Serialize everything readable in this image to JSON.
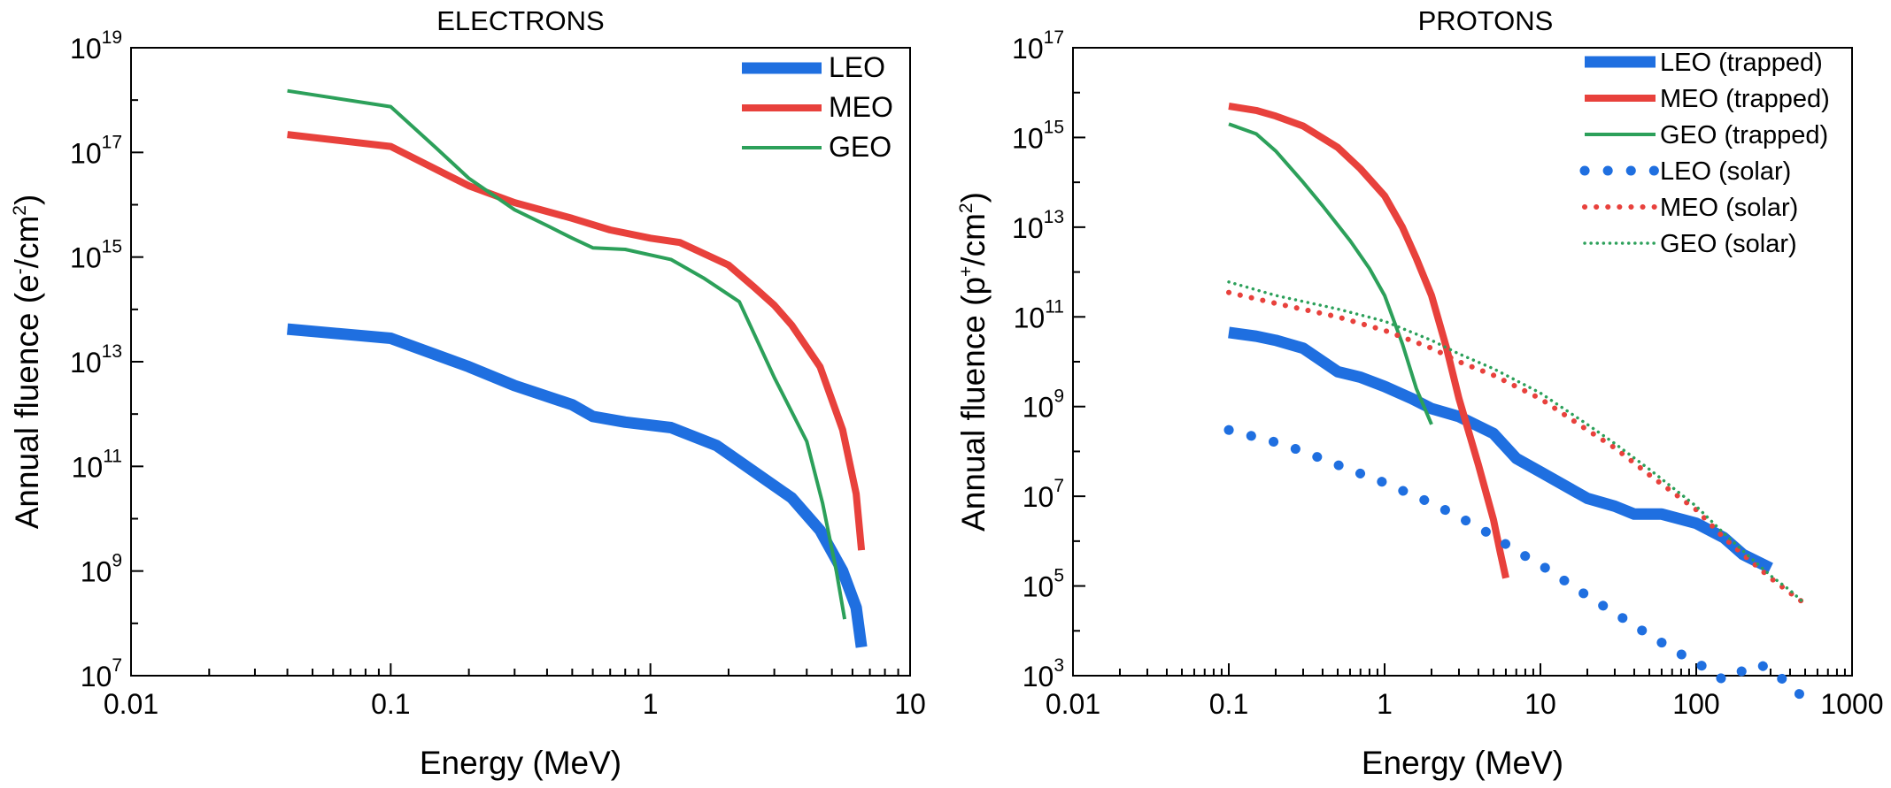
{
  "chart_data": [
    {
      "type": "line",
      "title": "ELECTRONS",
      "xlabel": "Energy (MeV)",
      "ylabel_main": "Annual fluence (e",
      "ylabel_sup1": "-",
      "ylabel_mid": "/cm",
      "ylabel_sup2": "2",
      "ylabel_end": ")",
      "x_scale": "log",
      "y_scale": "log",
      "xlim": [
        0.01,
        10
      ],
      "ylim": [
        10000000.0,
        1e+19
      ],
      "x_ticks": [
        {
          "value": 0.01,
          "label": "0.01"
        },
        {
          "value": 0.1,
          "label": "0.1"
        },
        {
          "value": 1,
          "label": "1"
        },
        {
          "value": 10,
          "label": "10"
        }
      ],
      "y_ticks": [
        {
          "exp": 7,
          "base": "10",
          "sup": "7"
        },
        {
          "exp": 9,
          "base": "10",
          "sup": "9"
        },
        {
          "exp": 11,
          "base": "10",
          "sup": "11"
        },
        {
          "exp": 13,
          "base": "10",
          "sup": "13"
        },
        {
          "exp": 15,
          "base": "10",
          "sup": "15"
        },
        {
          "exp": 17,
          "base": "10",
          "sup": "17"
        },
        {
          "exp": 19,
          "base": "10",
          "sup": "19"
        }
      ],
      "grid": false,
      "legend_position": "top-right",
      "series": [
        {
          "name": "LEO",
          "color": "#1f6fe0",
          "style": "solid-thick",
          "points": [
            [
              0.04,
              42000000000000.0
            ],
            [
              0.1,
              28000000000000.0
            ],
            [
              0.2,
              8000000000000.0
            ],
            [
              0.3,
              3500000000000.0
            ],
            [
              0.5,
              1500000000000.0
            ],
            [
              0.6,
              900000000000.0
            ],
            [
              0.8,
              700000000000.0
            ],
            [
              1.2,
              550000000000.0
            ],
            [
              1.8,
              250000000000.0
            ],
            [
              2.5,
              80000000000.0
            ],
            [
              3.5,
              25000000000.0
            ],
            [
              4.5,
              6000000000.0
            ],
            [
              5.5,
              1000000000.0
            ],
            [
              6.2,
              200000000.0
            ],
            [
              6.5,
              35000000.0
            ]
          ]
        },
        {
          "name": "MEO",
          "color": "#e8413c",
          "style": "solid",
          "points": [
            [
              0.04,
              2.2e+17
            ],
            [
              0.1,
              1.3e+17
            ],
            [
              0.2,
              2.3e+16
            ],
            [
              0.3,
              1.1e+16
            ],
            [
              0.5,
              5500000000000000.0
            ],
            [
              0.7,
              3300000000000000.0
            ],
            [
              1,
              2300000000000000.0
            ],
            [
              1.3,
              1900000000000000.0
            ],
            [
              2,
              700000000000000.0
            ],
            [
              2.5,
              270000000000000.0
            ],
            [
              3,
              120000000000000.0
            ],
            [
              3.5,
              50000000000000.0
            ],
            [
              4.5,
              8000000000000.0
            ],
            [
              5.5,
              500000000000.0
            ],
            [
              6.2,
              30000000000.0
            ],
            [
              6.5,
              2500000000.0
            ]
          ]
        },
        {
          "name": "GEO",
          "color": "#2ca05a",
          "style": "solid-thin",
          "points": [
            [
              0.04,
              1.5e+18
            ],
            [
              0.1,
              7.5e+17
            ],
            [
              0.15,
              1.2e+17
            ],
            [
              0.2,
              3.2e+16
            ],
            [
              0.3,
              8000000000000000.0
            ],
            [
              0.4,
              4000000000000000.0
            ],
            [
              0.5,
              2300000000000000.0
            ],
            [
              0.6,
              1500000000000000.0
            ],
            [
              0.8,
              1400000000000000.0
            ],
            [
              1.2,
              900000000000000.0
            ],
            [
              1.6,
              400000000000000.0
            ],
            [
              2.2,
              140000000000000.0
            ],
            [
              3,
              5000000000000.0
            ],
            [
              4,
              300000000000.0
            ],
            [
              4.6,
              20000000000.0
            ],
            [
              5.2,
              1000000000.0
            ],
            [
              5.6,
              120000000.0
            ]
          ]
        }
      ]
    },
    {
      "type": "line",
      "title": "PROTONS",
      "xlabel": "Energy (MeV)",
      "ylabel_main": "Annual fluence (p",
      "ylabel_sup1": "+",
      "ylabel_mid": "/cm",
      "ylabel_sup2": "2",
      "ylabel_end": ")",
      "x_scale": "log",
      "y_scale": "log",
      "xlim": [
        0.01,
        1000
      ],
      "ylim": [
        1000.0,
        1e+17
      ],
      "x_ticks": [
        {
          "value": 0.01,
          "label": "0.01"
        },
        {
          "value": 0.1,
          "label": "0.1"
        },
        {
          "value": 1,
          "label": "1"
        },
        {
          "value": 10,
          "label": "10"
        },
        {
          "value": 100,
          "label": "100"
        },
        {
          "value": 1000,
          "label": "1000"
        }
      ],
      "y_ticks": [
        {
          "exp": 3,
          "base": "10",
          "sup": "3"
        },
        {
          "exp": 5,
          "base": "10",
          "sup": "5"
        },
        {
          "exp": 7,
          "base": "10",
          "sup": "7"
        },
        {
          "exp": 9,
          "base": "10",
          "sup": "9"
        },
        {
          "exp": 11,
          "base": "10",
          "sup": "11"
        },
        {
          "exp": 13,
          "base": "10",
          "sup": "13"
        },
        {
          "exp": 15,
          "base": "10",
          "sup": "15"
        },
        {
          "exp": 17,
          "base": "10",
          "sup": "17"
        }
      ],
      "grid": false,
      "legend_position": "top-right",
      "series": [
        {
          "name": "LEO (trapped)",
          "color": "#1f6fe0",
          "style": "solid-thick",
          "points": [
            [
              0.1,
              45000000000.0
            ],
            [
              0.15,
              37000000000.0
            ],
            [
              0.2,
              30000000000.0
            ],
            [
              0.3,
              20000000000.0
            ],
            [
              0.5,
              6000000000.0
            ],
            [
              0.7,
              4500000000.0
            ],
            [
              1,
              2800000000.0
            ],
            [
              1.5,
              1500000000.0
            ],
            [
              2,
              900000000.0
            ],
            [
              3,
              600000000.0
            ],
            [
              5,
              250000000.0
            ],
            [
              7,
              70000000.0
            ],
            [
              10,
              35000000.0
            ],
            [
              20,
              9000000.0
            ],
            [
              30,
              6000000.0
            ],
            [
              40,
              4000000.0
            ],
            [
              60,
              4000000.0
            ],
            [
              100,
              2500000.0
            ],
            [
              150,
              1200000.0
            ],
            [
              200,
              500000.0
            ],
            [
              300,
              250000.0
            ]
          ]
        },
        {
          "name": "MEO (trapped)",
          "color": "#e8413c",
          "style": "solid",
          "points": [
            [
              0.1,
              5000000000000000.0
            ],
            [
              0.15,
              4000000000000000.0
            ],
            [
              0.2,
              3000000000000000.0
            ],
            [
              0.3,
              1800000000000000.0
            ],
            [
              0.5,
              600000000000000.0
            ],
            [
              0.7,
              200000000000000.0
            ],
            [
              1,
              50000000000000.0
            ],
            [
              1.3,
              10000000000000.0
            ],
            [
              1.6,
              2000000000000.0
            ],
            [
              2,
              300000000000.0
            ],
            [
              2.5,
              20000000000.0
            ],
            [
              3,
              1500000000.0
            ],
            [
              4,
              50000000.0
            ],
            [
              5,
              3000000.0
            ],
            [
              5.5,
              600000.0
            ],
            [
              6,
              150000.0
            ]
          ]
        },
        {
          "name": "GEO (trapped)",
          "color": "#2ca05a",
          "style": "solid-thin",
          "points": [
            [
              0.1,
              2000000000000000.0
            ],
            [
              0.15,
              1200000000000000.0
            ],
            [
              0.2,
              500000000000000.0
            ],
            [
              0.3,
              100000000000000.0
            ],
            [
              0.4,
              30000000000000.0
            ],
            [
              0.6,
              5000000000000.0
            ],
            [
              0.8,
              1200000000000.0
            ],
            [
              1,
              300000000000.0
            ],
            [
              1.3,
              25000000000.0
            ],
            [
              1.6,
              2500000000.0
            ],
            [
              2,
              400000000.0
            ]
          ]
        },
        {
          "name": "LEO (solar)",
          "color": "#1f6fe0",
          "style": "dotted-thick",
          "points": [
            [
              0.1,
              300000000.0
            ],
            [
              0.2,
              160000000.0
            ],
            [
              0.3,
              100000000.0
            ],
            [
              0.5,
              50000000.0
            ],
            [
              1,
              20000000.0
            ],
            [
              2,
              7000000.0
            ],
            [
              3,
              3500000.0
            ],
            [
              5,
              1300000.0
            ],
            [
              7,
              600000.0
            ],
            [
              10,
              300000.0
            ],
            [
              20,
              60000.0
            ],
            [
              30,
              25000.0
            ],
            [
              50,
              8000.0
            ],
            [
              80,
              3000.0
            ],
            [
              100,
              2000.0
            ],
            [
              150,
              800.0
            ],
            [
              200,
              1300.0
            ],
            [
              250,
              1800.0
            ],
            [
              300,
              1400.0
            ],
            [
              400,
              600.0
            ],
            [
              500,
              300.0
            ]
          ]
        },
        {
          "name": "MEO (solar)",
          "color": "#e8413c",
          "style": "dotted",
          "points": [
            [
              0.1,
              350000000000.0
            ],
            [
              0.2,
              200000000000.0
            ],
            [
              0.5,
              100000000000.0
            ],
            [
              1,
              50000000000.0
            ],
            [
              2,
              20000000000.0
            ],
            [
              3,
              10000000000.0
            ],
            [
              5,
              5000000000.0
            ],
            [
              10,
              1500000000.0
            ],
            [
              20,
              300000000.0
            ],
            [
              30,
              120000000.0
            ],
            [
              50,
              30000000.0
            ],
            [
              100,
              5000000.0
            ],
            [
              150,
              1200000.0
            ],
            [
              200,
              500000.0
            ],
            [
              300,
              150000.0
            ],
            [
              400,
              70000.0
            ],
            [
              500,
              40000.0
            ]
          ]
        },
        {
          "name": "GEO (solar)",
          "color": "#2ca05a",
          "style": "dotted-thin",
          "points": [
            [
              0.1,
              600000000000.0
            ],
            [
              0.2,
              300000000000.0
            ],
            [
              0.5,
              150000000000.0
            ],
            [
              1,
              80000000000.0
            ],
            [
              2,
              30000000000.0
            ],
            [
              3,
              15000000000.0
            ],
            [
              5,
              7000000000.0
            ],
            [
              10,
              2000000000.0
            ],
            [
              20,
              400000000.0
            ],
            [
              30,
              150000000.0
            ],
            [
              50,
              40000000.0
            ],
            [
              100,
              6000000.0
            ],
            [
              150,
              1500000.0
            ],
            [
              200,
              600000.0
            ],
            [
              300,
              170000.0
            ],
            [
              400,
              80000.0
            ],
            [
              500,
              40000.0
            ]
          ]
        }
      ]
    }
  ]
}
